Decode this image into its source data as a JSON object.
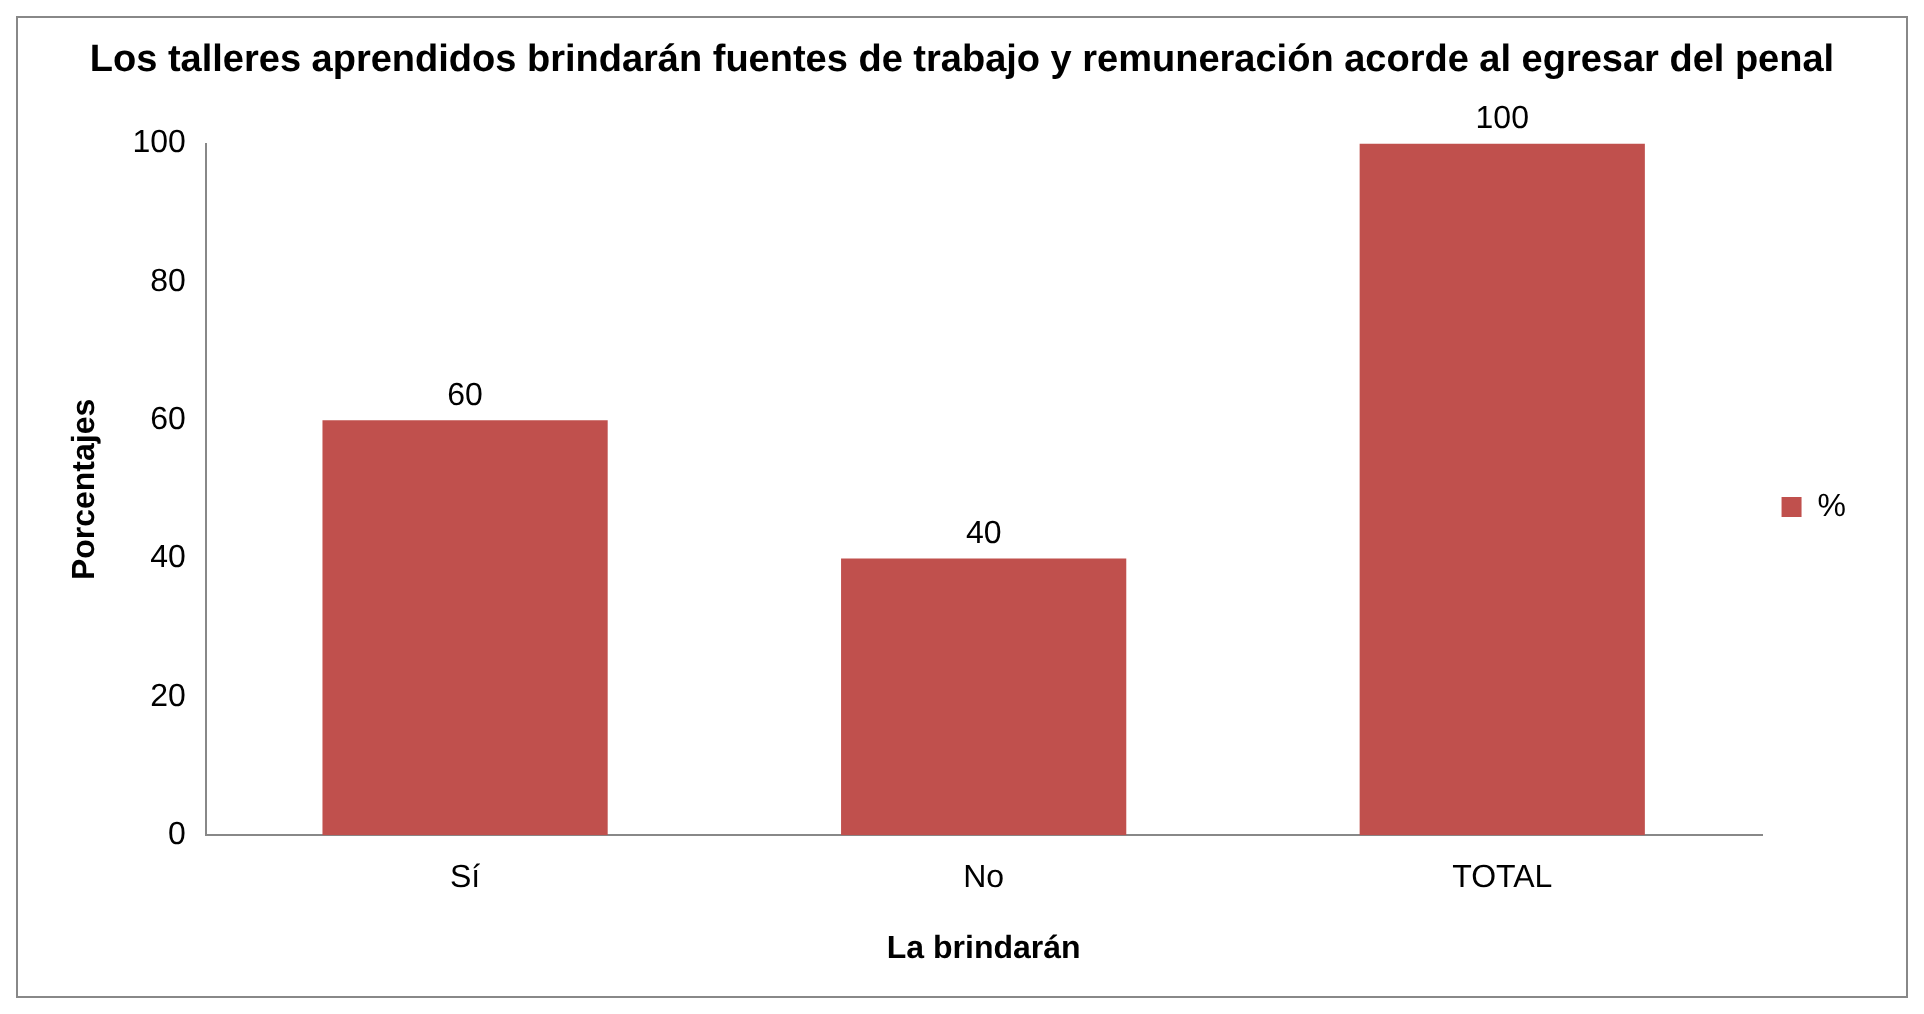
{
  "chart_data": {
    "type": "bar",
    "title": "Los talleres aprendidos brindarán fuentes de trabajo y remuneración acorde al egresar del penal",
    "xlabel": "La brindarán",
    "ylabel": "Porcentajes",
    "categories": [
      "Sí",
      "No",
      "TOTAL"
    ],
    "series": [
      {
        "name": "%",
        "color": "#c0504d",
        "values": [
          60,
          40,
          100
        ]
      }
    ],
    "ylim": [
      0,
      100
    ],
    "yticks": [
      0,
      20,
      40,
      60,
      80,
      100
    ],
    "grid": false,
    "legend": "right",
    "data_labels": true
  }
}
